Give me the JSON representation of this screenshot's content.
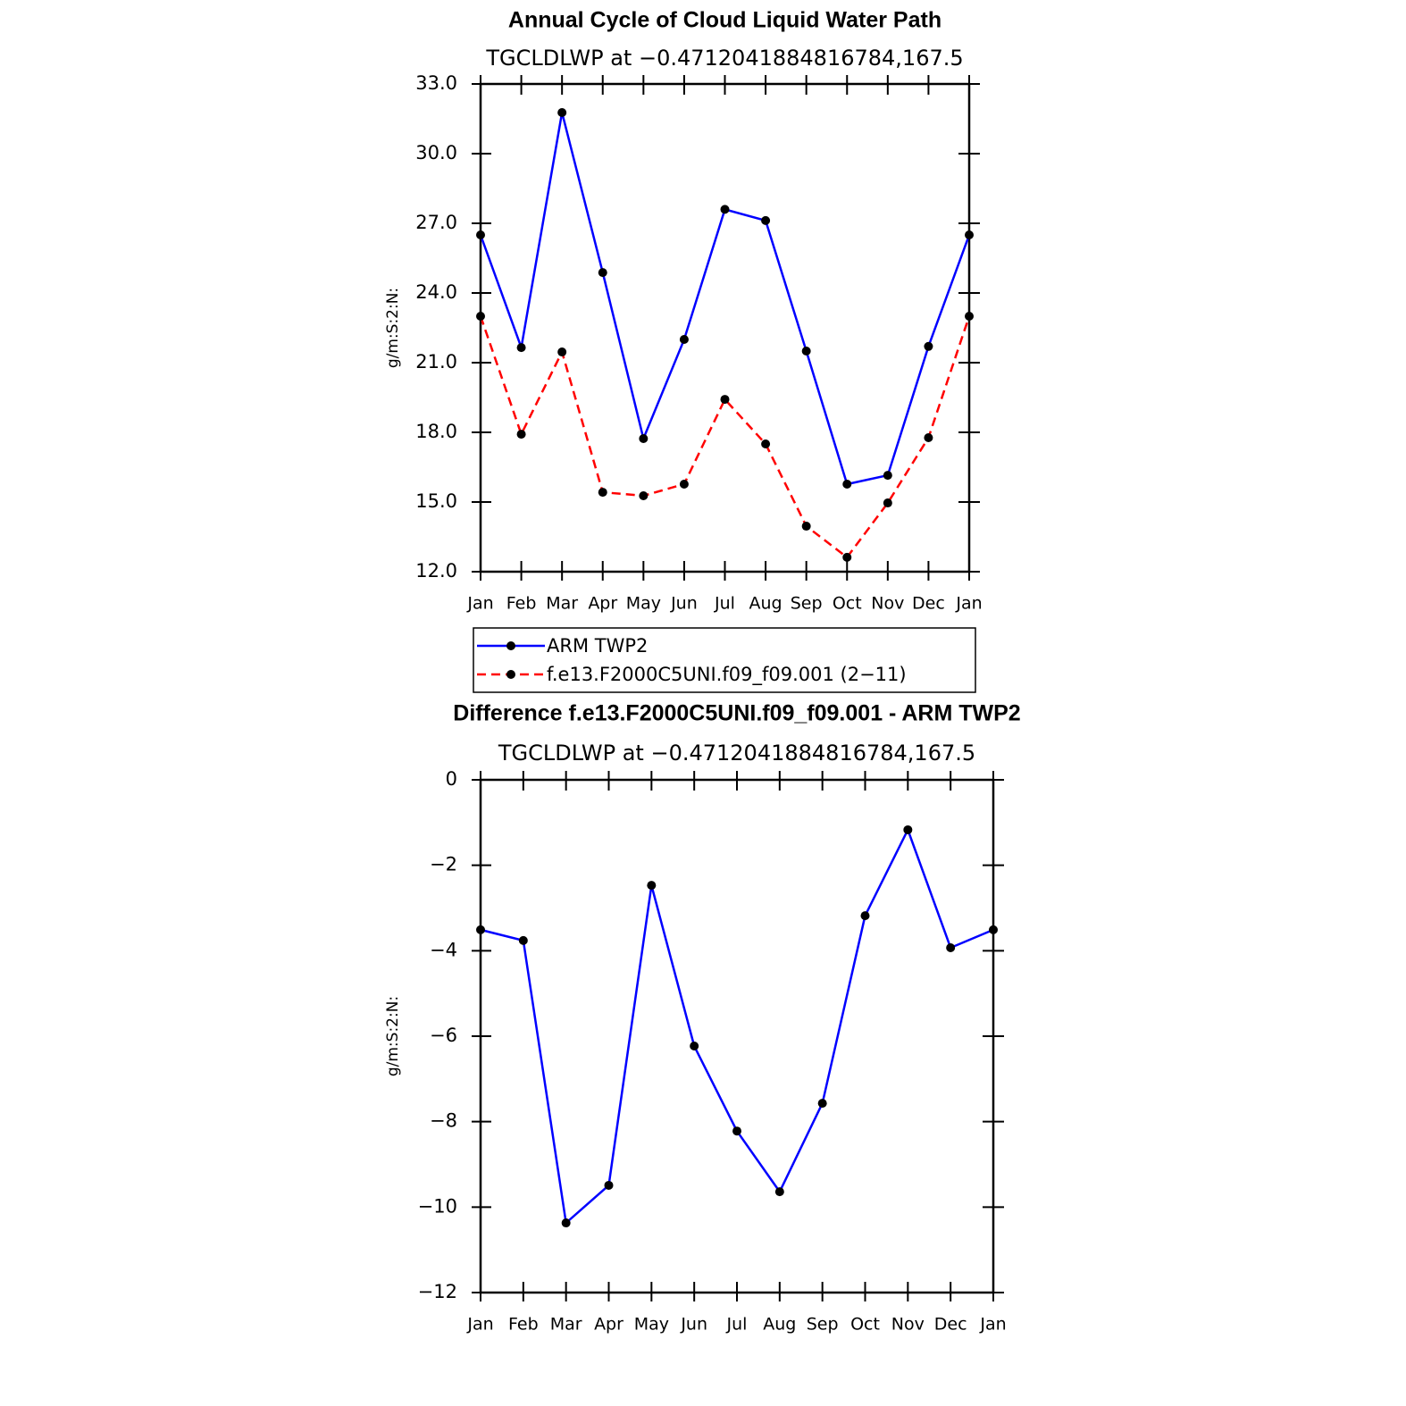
{
  "chart_data": [
    {
      "type": "line",
      "title": "Annual Cycle of Cloud Liquid Water Path",
      "subtitle": "TGCLDLWP  at −0.4712041884816784,167.5",
      "y_label": "g/m:S:2:N:",
      "categories": [
        "Jan",
        "Feb",
        "Mar",
        "Apr",
        "May",
        "Jun",
        "Jul",
        "Aug",
        "Sep",
        "Oct",
        "Nov",
        "Dec",
        "Jan"
      ],
      "series": [
        {
          "name": "ARM TWP2",
          "color": "#0000ff",
          "line_style": "solid",
          "values": [
            26.5,
            21.65,
            31.77,
            24.88,
            17.73,
            22.0,
            27.6,
            27.12,
            21.5,
            15.77,
            16.15,
            21.7,
            26.5
          ]
        },
        {
          "name": "f.e13.F2000C5UNI.f09_f09.001 (2−11)",
          "color": "#ff0000",
          "line_style": "dashed",
          "values": [
            23.0,
            17.92,
            21.46,
            15.42,
            15.27,
            15.77,
            19.42,
            17.5,
            13.96,
            12.62,
            14.96,
            17.77,
            23.0
          ]
        }
      ],
      "marker_color": "#000000",
      "ylim": [
        12,
        33
      ],
      "yticks": [
        {
          "value": 12,
          "label": "12.0"
        },
        {
          "value": 15,
          "label": "15.0"
        },
        {
          "value": 18,
          "label": "18.0"
        },
        {
          "value": 21,
          "label": "21.0"
        },
        {
          "value": 24,
          "label": "24.0"
        },
        {
          "value": 27,
          "label": "27.0"
        },
        {
          "value": 30,
          "label": "30.0"
        },
        {
          "value": 33,
          "label": "33.0"
        }
      ],
      "legend": "below"
    },
    {
      "type": "line",
      "title": "Difference f.e13.F2000C5UNI.f09_f09.001 - ARM TWP2",
      "subtitle": "TGCLDLWP  at −0.4712041884816784,167.5",
      "y_label": "g/m:S:2:N:",
      "categories": [
        "Jan",
        "Feb",
        "Mar",
        "Apr",
        "May",
        "Jun",
        "Jul",
        "Aug",
        "Sep",
        "Oct",
        "Nov",
        "Dec",
        "Jan"
      ],
      "series": [
        {
          "color": "#0000ff",
          "line_style": "solid",
          "values": [
            -3.51,
            -3.76,
            -10.37,
            -9.49,
            -2.47,
            -6.23,
            -8.22,
            -9.64,
            -7.57,
            -3.18,
            -1.17,
            -3.93,
            -3.51
          ]
        }
      ],
      "marker_color": "#000000",
      "ylim": [
        -12,
        0
      ],
      "yticks": [
        {
          "value": -12,
          "label": "−12"
        },
        {
          "value": -10,
          "label": "−10"
        },
        {
          "value": -8,
          "label": "−8"
        },
        {
          "value": -6,
          "label": "−6"
        },
        {
          "value": -4,
          "label": "−4"
        },
        {
          "value": -2,
          "label": "−2"
        },
        0
      ]
    }
  ]
}
